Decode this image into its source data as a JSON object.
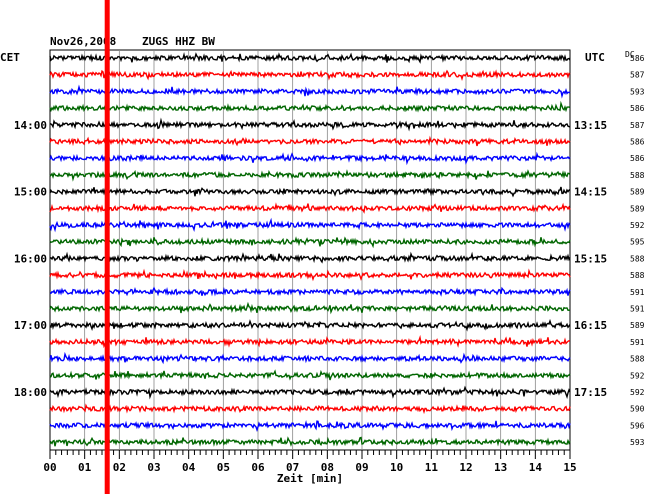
{
  "header": {
    "date": "Nov26,2008",
    "station": "ZUGS HHZ BW",
    "left_label": "CET",
    "right_label": "UTC",
    "dc_label": "DC"
  },
  "chart_data": {
    "type": "line",
    "title": "",
    "xlabel": "Zeit [min]",
    "xlim": [
      0,
      15
    ],
    "x_ticks": [
      "00",
      "01",
      "02",
      "03",
      "04",
      "05",
      "06",
      "07",
      "08",
      "09",
      "10",
      "11",
      "12",
      "13",
      "14",
      "15"
    ],
    "trace_colors": [
      "#000000",
      "#ff0000",
      "#0000ff",
      "#006600"
    ],
    "left_time_labels": [
      {
        "trace": 4,
        "label": "14:00"
      },
      {
        "trace": 8,
        "label": "15:00"
      },
      {
        "trace": 12,
        "label": "16:00"
      },
      {
        "trace": 16,
        "label": "17:00"
      },
      {
        "trace": 20,
        "label": "18:00"
      }
    ],
    "right_time_labels": [
      {
        "trace": 4,
        "label": "13:15"
      },
      {
        "trace": 8,
        "label": "14:15"
      },
      {
        "trace": 12,
        "label": "15:15"
      },
      {
        "trace": 16,
        "label": "16:15"
      },
      {
        "trace": 20,
        "label": "17:15"
      }
    ],
    "dc_values": [
      "586",
      "587",
      "593",
      "586",
      "587",
      "586",
      "586",
      "588",
      "589",
      "589",
      "592",
      "595",
      "588",
      "588",
      "591",
      "591",
      "589",
      "591",
      "588",
      "592",
      "592",
      "590",
      "596",
      "593"
    ],
    "marker": {
      "minute": 1.65,
      "color": "#ff0000"
    }
  }
}
